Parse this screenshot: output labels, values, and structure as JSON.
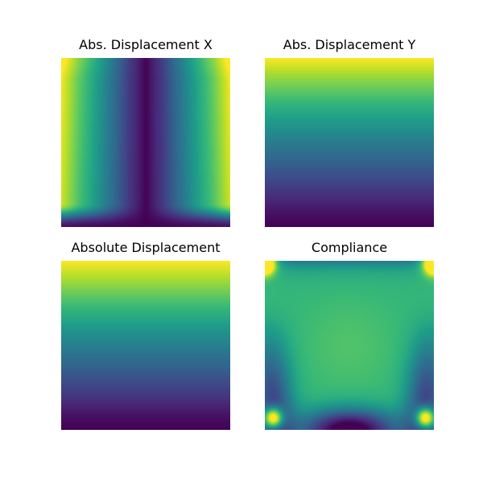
{
  "figure": {
    "background": "#ffffff"
  },
  "colormap": {
    "name": "viridis",
    "stops": [
      "#440154",
      "#482878",
      "#3e4989",
      "#31688e",
      "#26828e",
      "#1f9e89",
      "#35b779",
      "#6ece58",
      "#b5de2b",
      "#fde725"
    ]
  },
  "chart_data": [
    {
      "type": "heatmap",
      "title": "Abs. Displacement X",
      "xlabel": "",
      "ylabel": "",
      "axes": "off",
      "grid": false,
      "colormap": "viridis",
      "field": "abs_displacement_x",
      "value_range": [
        0,
        1
      ],
      "columns_x": [
        0,
        0.1,
        0.2,
        0.3,
        0.4,
        0.5,
        0.6,
        0.7,
        0.8,
        0.9,
        1
      ],
      "profile_mid_height": [
        1.0,
        0.75,
        0.55,
        0.35,
        0.15,
        0.0,
        0.15,
        0.35,
        0.55,
        0.75,
        1.0
      ]
    },
    {
      "type": "heatmap",
      "title": "Abs. Displacement Y",
      "xlabel": "",
      "ylabel": "",
      "axes": "off",
      "grid": false,
      "colormap": "viridis",
      "field": "abs_displacement_y",
      "value_range": [
        0,
        1
      ],
      "rows_from_top": [
        0,
        0.1,
        0.2,
        0.3,
        0.4,
        0.5,
        0.6,
        0.7,
        0.8,
        0.9,
        1
      ],
      "profile_vertical": [
        1.0,
        0.86,
        0.74,
        0.62,
        0.52,
        0.42,
        0.33,
        0.24,
        0.15,
        0.06,
        0.0
      ]
    },
    {
      "type": "heatmap",
      "title": "Absolute Displacement",
      "xlabel": "",
      "ylabel": "",
      "axes": "off",
      "grid": false,
      "colormap": "viridis",
      "field": "absolute_displacement",
      "value_range": [
        0,
        1
      ],
      "rows_from_top": [
        0,
        0.1,
        0.2,
        0.3,
        0.4,
        0.5,
        0.6,
        0.7,
        0.8,
        0.9,
        1
      ],
      "profile_vertical": [
        1.0,
        0.88,
        0.76,
        0.64,
        0.53,
        0.43,
        0.34,
        0.25,
        0.16,
        0.06,
        0.0
      ]
    },
    {
      "type": "heatmap",
      "title": "Compliance",
      "xlabel": "",
      "ylabel": "",
      "axes": "off",
      "grid": false,
      "colormap": "viridis",
      "field": "compliance",
      "value_range": [
        0,
        1
      ],
      "features": {
        "center_level": 0.66,
        "hot_spots": [
          {
            "x": 0.05,
            "y": 0.93,
            "value": 1.0
          },
          {
            "x": 0.95,
            "y": 0.93,
            "value": 1.0
          },
          {
            "x": 0.0,
            "y": 0.02,
            "value": 1.0
          },
          {
            "x": 1.0,
            "y": 0.02,
            "value": 1.0
          }
        ],
        "low_regions": [
          "bottom-center",
          "lower-left edge",
          "lower-right edge",
          "top edge"
        ]
      }
    }
  ]
}
